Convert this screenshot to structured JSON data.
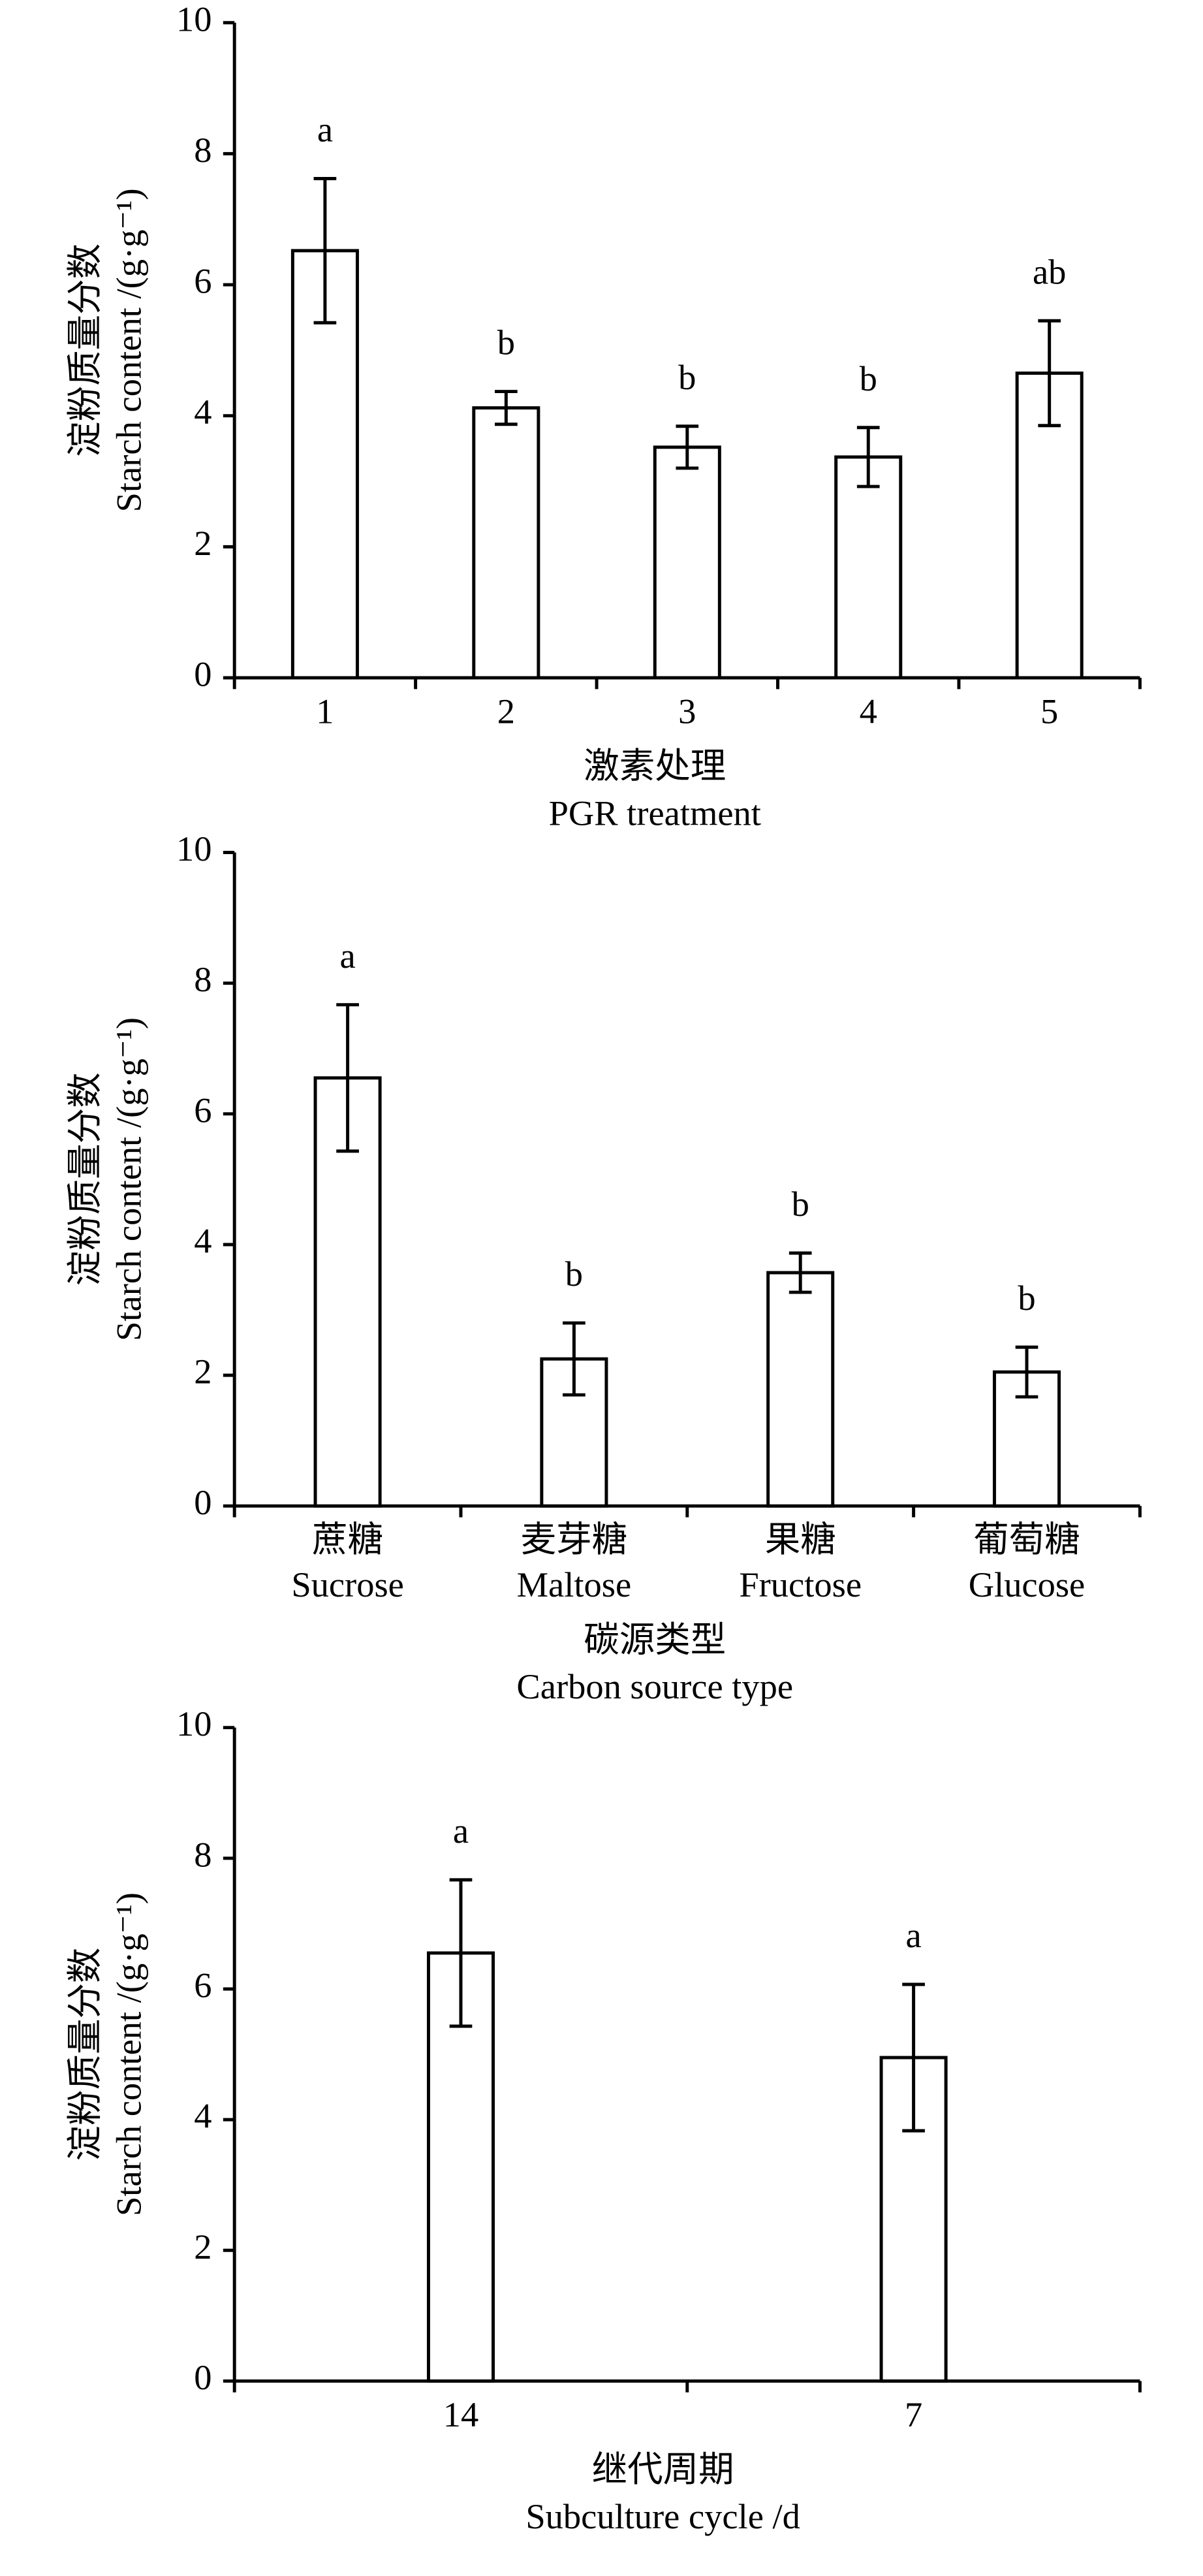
{
  "chart_data": [
    {
      "type": "bar",
      "y_label": [
        "淀粉质量分数",
        "Starch content /(g·g⁻¹)"
      ],
      "x_label": [
        "激素处理",
        "PGR treatment"
      ],
      "categories": [
        [
          "1"
        ],
        [
          "2"
        ],
        [
          "3"
        ],
        [
          "4"
        ],
        [
          "5"
        ]
      ],
      "values": [
        6.52,
        4.12,
        3.52,
        3.37,
        4.65
      ],
      "errors": [
        1.1,
        0.25,
        0.32,
        0.45,
        0.8
      ],
      "significance": [
        "a",
        "b",
        "b",
        "b",
        "ab"
      ],
      "color": "#ffffff",
      "ylim": [
        0,
        10
      ],
      "yticks": [
        0,
        2,
        4,
        6,
        8,
        10
      ]
    },
    {
      "type": "bar",
      "y_label": [
        "淀粉质量分数",
        "Starch content /(g·g⁻¹)"
      ],
      "x_label": [
        "碳源类型",
        "Carbon source type"
      ],
      "categories": [
        [
          "蔗糖",
          "Sucrose"
        ],
        [
          "麦芽糖",
          "Maltose"
        ],
        [
          "果糖",
          "Fructose"
        ],
        [
          "葡萄糖",
          "Glucose"
        ]
      ],
      "values": [
        6.55,
        2.25,
        3.57,
        2.05
      ],
      "errors": [
        1.12,
        0.55,
        0.3,
        0.38
      ],
      "significance": [
        "a",
        "b",
        "b",
        "b"
      ],
      "color": "#ffffff",
      "ylim": [
        0,
        10
      ],
      "yticks": [
        0,
        2,
        4,
        6,
        8,
        10
      ]
    },
    {
      "type": "bar",
      "y_label": [
        "淀粉质量分数",
        "Starch content /(g·g⁻¹)"
      ],
      "x_label": [
        "继代周期",
        "Subculture cycle /d"
      ],
      "categories": [
        [
          "14"
        ],
        [
          "7"
        ]
      ],
      "values": [
        6.55,
        4.95
      ],
      "errors": [
        1.12,
        1.12
      ],
      "significance": [
        "a",
        "a"
      ],
      "color": "#ffffff",
      "ylim": [
        0,
        10
      ],
      "yticks": [
        0,
        2,
        4,
        6,
        8,
        10
      ]
    }
  ]
}
